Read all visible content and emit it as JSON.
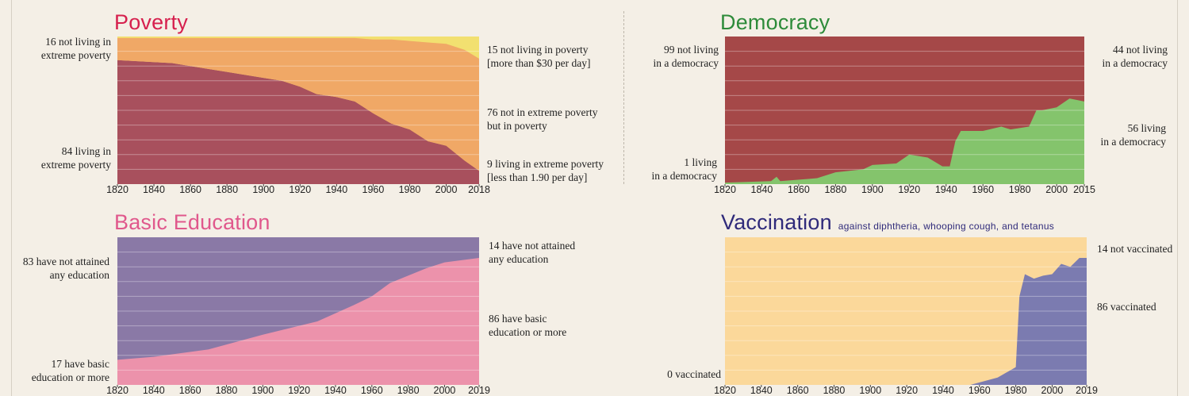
{
  "colors": {
    "poverty_title": "#d6204e",
    "democracy_title": "#2e8b3a",
    "education_title": "#e0588c",
    "vaccination_title": "#2f2a7a",
    "extreme": "#a8505d",
    "poverty": "#f0a866",
    "not_poor": "#f2e070",
    "no_democracy": "#a54848",
    "democracy": "#84c46c",
    "no_education": "#8a79a6",
    "education": "#ec92ab",
    "not_vaccinated": "#fbd89a",
    "vaccinated": "#7b7bb0"
  },
  "panels": {
    "poverty": {
      "title": "Poverty",
      "left_top": [
        "16 not living in",
        "extreme poverty"
      ],
      "left_bottom": [
        "84 living in",
        "extreme poverty"
      ],
      "right_1": [
        "15 not living in poverty",
        "[more than $30 per day]"
      ],
      "right_2": [
        "76 not in extreme poverty",
        "but in poverty"
      ],
      "right_3": [
        "9 living in extreme poverty",
        "[less than 1.90 per day]"
      ],
      "ticks": [
        "1820",
        "1840",
        "1860",
        "1880",
        "1900",
        "1920",
        "1940",
        "1960",
        "1980",
        "2000",
        "2018"
      ]
    },
    "democracy": {
      "title": "Democracy",
      "left_top": [
        "99 not living",
        "in a democracy"
      ],
      "left_bottom": [
        "1 living",
        "in a democracy"
      ],
      "right_top": [
        "44 not living",
        "in a democracy"
      ],
      "right_bottom": [
        "56 living",
        "in a democracy"
      ],
      "ticks": [
        "1820",
        "1840",
        "1860",
        "1880",
        "1900",
        "1920",
        "1940",
        "1960",
        "1980",
        "2000",
        "2015"
      ]
    },
    "education": {
      "title": "Basic Education",
      "left_top": [
        "83 have not attained",
        "any education"
      ],
      "left_bottom": [
        "17 have basic",
        "education or more"
      ],
      "right_top": [
        "14 have not attained",
        "any education"
      ],
      "right_bottom": [
        "86 have basic",
        "education or more"
      ],
      "ticks": [
        "1820",
        "1840",
        "1860",
        "1880",
        "1900",
        "1920",
        "1940",
        "1960",
        "1980",
        "2000",
        "2019"
      ]
    },
    "vaccination": {
      "title": "Vaccination",
      "subtitle": "against diphtheria, whooping cough, and tetanus",
      "left_bottom": [
        "0 vaccinated"
      ],
      "right_top": [
        "14 not vaccinated"
      ],
      "right_mid": [
        "86 vaccinated"
      ],
      "ticks": [
        "1820",
        "1840",
        "1860",
        "1880",
        "1900",
        "1920",
        "1940",
        "1960",
        "1980",
        "2000",
        "2019"
      ]
    }
  },
  "chart_data": [
    {
      "id": "poverty",
      "type": "area",
      "title": "Poverty",
      "stacked_percent": true,
      "xlim": [
        1820,
        2018
      ],
      "ylim": [
        0,
        100
      ],
      "x": [
        1820,
        1850,
        1860,
        1880,
        1900,
        1910,
        1920,
        1929,
        1940,
        1950,
        1960,
        1970,
        1980,
        1990,
        2000,
        2010,
        2018
      ],
      "series": [
        {
          "name": "Living in extreme poverty (less than 1.90 per day)",
          "values": [
            84,
            82,
            80,
            76,
            72,
            70,
            66,
            61,
            59,
            56,
            48,
            41,
            37,
            29,
            26,
            16,
            9
          ]
        },
        {
          "name": "Not in extreme poverty but in poverty",
          "values": [
            15,
            17,
            19,
            23,
            27,
            29,
            33,
            38,
            40,
            43,
            50,
            57,
            60,
            67,
            69,
            75,
            76
          ]
        },
        {
          "name": "Not living in poverty (more than $30 per day)",
          "values": [
            1,
            1,
            1,
            1,
            1,
            1,
            1,
            1,
            1,
            1,
            2,
            2,
            3,
            4,
            5,
            9,
            15
          ]
        }
      ]
    },
    {
      "id": "democracy",
      "type": "area",
      "title": "Democracy",
      "stacked_percent": true,
      "xlim": [
        1820,
        2015
      ],
      "ylim": [
        0,
        100
      ],
      "x": [
        1820,
        1845,
        1848,
        1850,
        1870,
        1880,
        1895,
        1900,
        1913,
        1920,
        1930,
        1938,
        1942,
        1945,
        1948,
        1960,
        1970,
        1975,
        1985,
        1989,
        1992,
        2000,
        2007,
        2015
      ],
      "series": [
        {
          "name": "Living in a democracy",
          "values": [
            1,
            2,
            5,
            2,
            4,
            8,
            10,
            13,
            14,
            20,
            18,
            12,
            12,
            29,
            36,
            36,
            39,
            37,
            39,
            50,
            50,
            52,
            58,
            56
          ]
        },
        {
          "name": "Not living in a democracy",
          "values": [
            99,
            98,
            95,
            98,
            96,
            92,
            90,
            87,
            86,
            80,
            82,
            88,
            88,
            71,
            64,
            64,
            61,
            63,
            61,
            50,
            50,
            48,
            42,
            44
          ]
        }
      ]
    },
    {
      "id": "education",
      "type": "area",
      "title": "Basic Education",
      "stacked_percent": true,
      "xlim": [
        1820,
        2019
      ],
      "ylim": [
        0,
        100
      ],
      "x": [
        1820,
        1840,
        1870,
        1900,
        1930,
        1950,
        1960,
        1970,
        1990,
        2000,
        2019
      ],
      "series": [
        {
          "name": "Have basic education or more",
          "values": [
            17,
            19,
            24,
            34,
            43,
            54,
            60,
            69,
            79,
            83,
            86
          ]
        },
        {
          "name": "Have not attained any education",
          "values": [
            83,
            81,
            76,
            66,
            57,
            46,
            40,
            31,
            21,
            17,
            14
          ]
        }
      ]
    },
    {
      "id": "vaccination",
      "type": "area",
      "title": "Vaccination",
      "subtitle": "against diphtheria, whooping cough, and tetanus",
      "stacked_percent": true,
      "xlim": [
        1820,
        2019
      ],
      "ylim": [
        0,
        100
      ],
      "x": [
        1820,
        1955,
        1970,
        1980,
        1982,
        1985,
        1990,
        1995,
        2000,
        2005,
        2010,
        2015,
        2019
      ],
      "series": [
        {
          "name": "Vaccinated",
          "values": [
            0,
            0,
            5,
            12,
            60,
            75,
            72,
            74,
            75,
            82,
            80,
            86,
            86
          ]
        },
        {
          "name": "Not vaccinated",
          "values": [
            100,
            100,
            95,
            88,
            40,
            25,
            28,
            26,
            25,
            18,
            20,
            14,
            14
          ]
        }
      ]
    }
  ]
}
